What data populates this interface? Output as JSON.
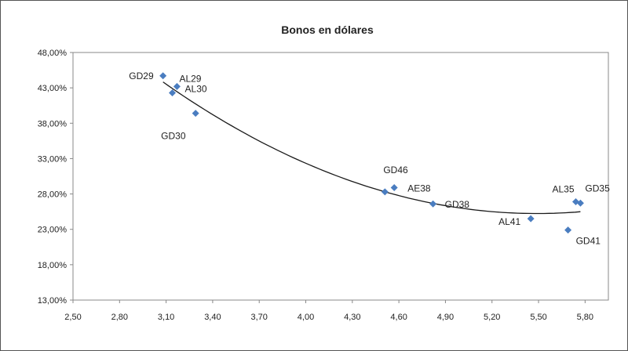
{
  "chart_data": {
    "type": "scatter",
    "title": "Bonos  en dólares",
    "xlabel": "",
    "ylabel": "",
    "xlim": [
      2.5,
      5.95
    ],
    "ylim": [
      13,
      48
    ],
    "xticks": [
      "2,50",
      "2,80",
      "3,10",
      "3,40",
      "3,70",
      "4,00",
      "4,30",
      "4,60",
      "4,90",
      "5,20",
      "5,50",
      "5,80"
    ],
    "yticks": [
      "13,00%",
      "18,00%",
      "23,00%",
      "28,00%",
      "33,00%",
      "38,00%",
      "43,00%",
      "48,00%"
    ],
    "grid": false,
    "marker_color": "#4A7DC0",
    "trendline": {
      "type": "polynomial-2",
      "x_from": 3.08,
      "x_to": 5.77,
      "color": "#1a1a1a"
    },
    "points": [
      {
        "name": "GD29",
        "x": 3.08,
        "y": 44.7
      },
      {
        "name": "AL29",
        "x": 3.17,
        "y": 43.2
      },
      {
        "name": "AL30",
        "x": 3.14,
        "y": 42.3
      },
      {
        "name": "GD30",
        "x": 3.29,
        "y": 39.4
      },
      {
        "name": "GD46",
        "x": 4.51,
        "y": 28.3
      },
      {
        "name": "AE38",
        "x": 4.57,
        "y": 28.9
      },
      {
        "name": "GD38",
        "x": 4.82,
        "y": 26.6
      },
      {
        "name": "AL41",
        "x": 5.45,
        "y": 24.5
      },
      {
        "name": "AL35",
        "x": 5.74,
        "y": 26.9
      },
      {
        "name": "GD35",
        "x": 5.77,
        "y": 26.7
      },
      {
        "name": "GD41",
        "x": 5.69,
        "y": 22.9
      }
    ]
  }
}
